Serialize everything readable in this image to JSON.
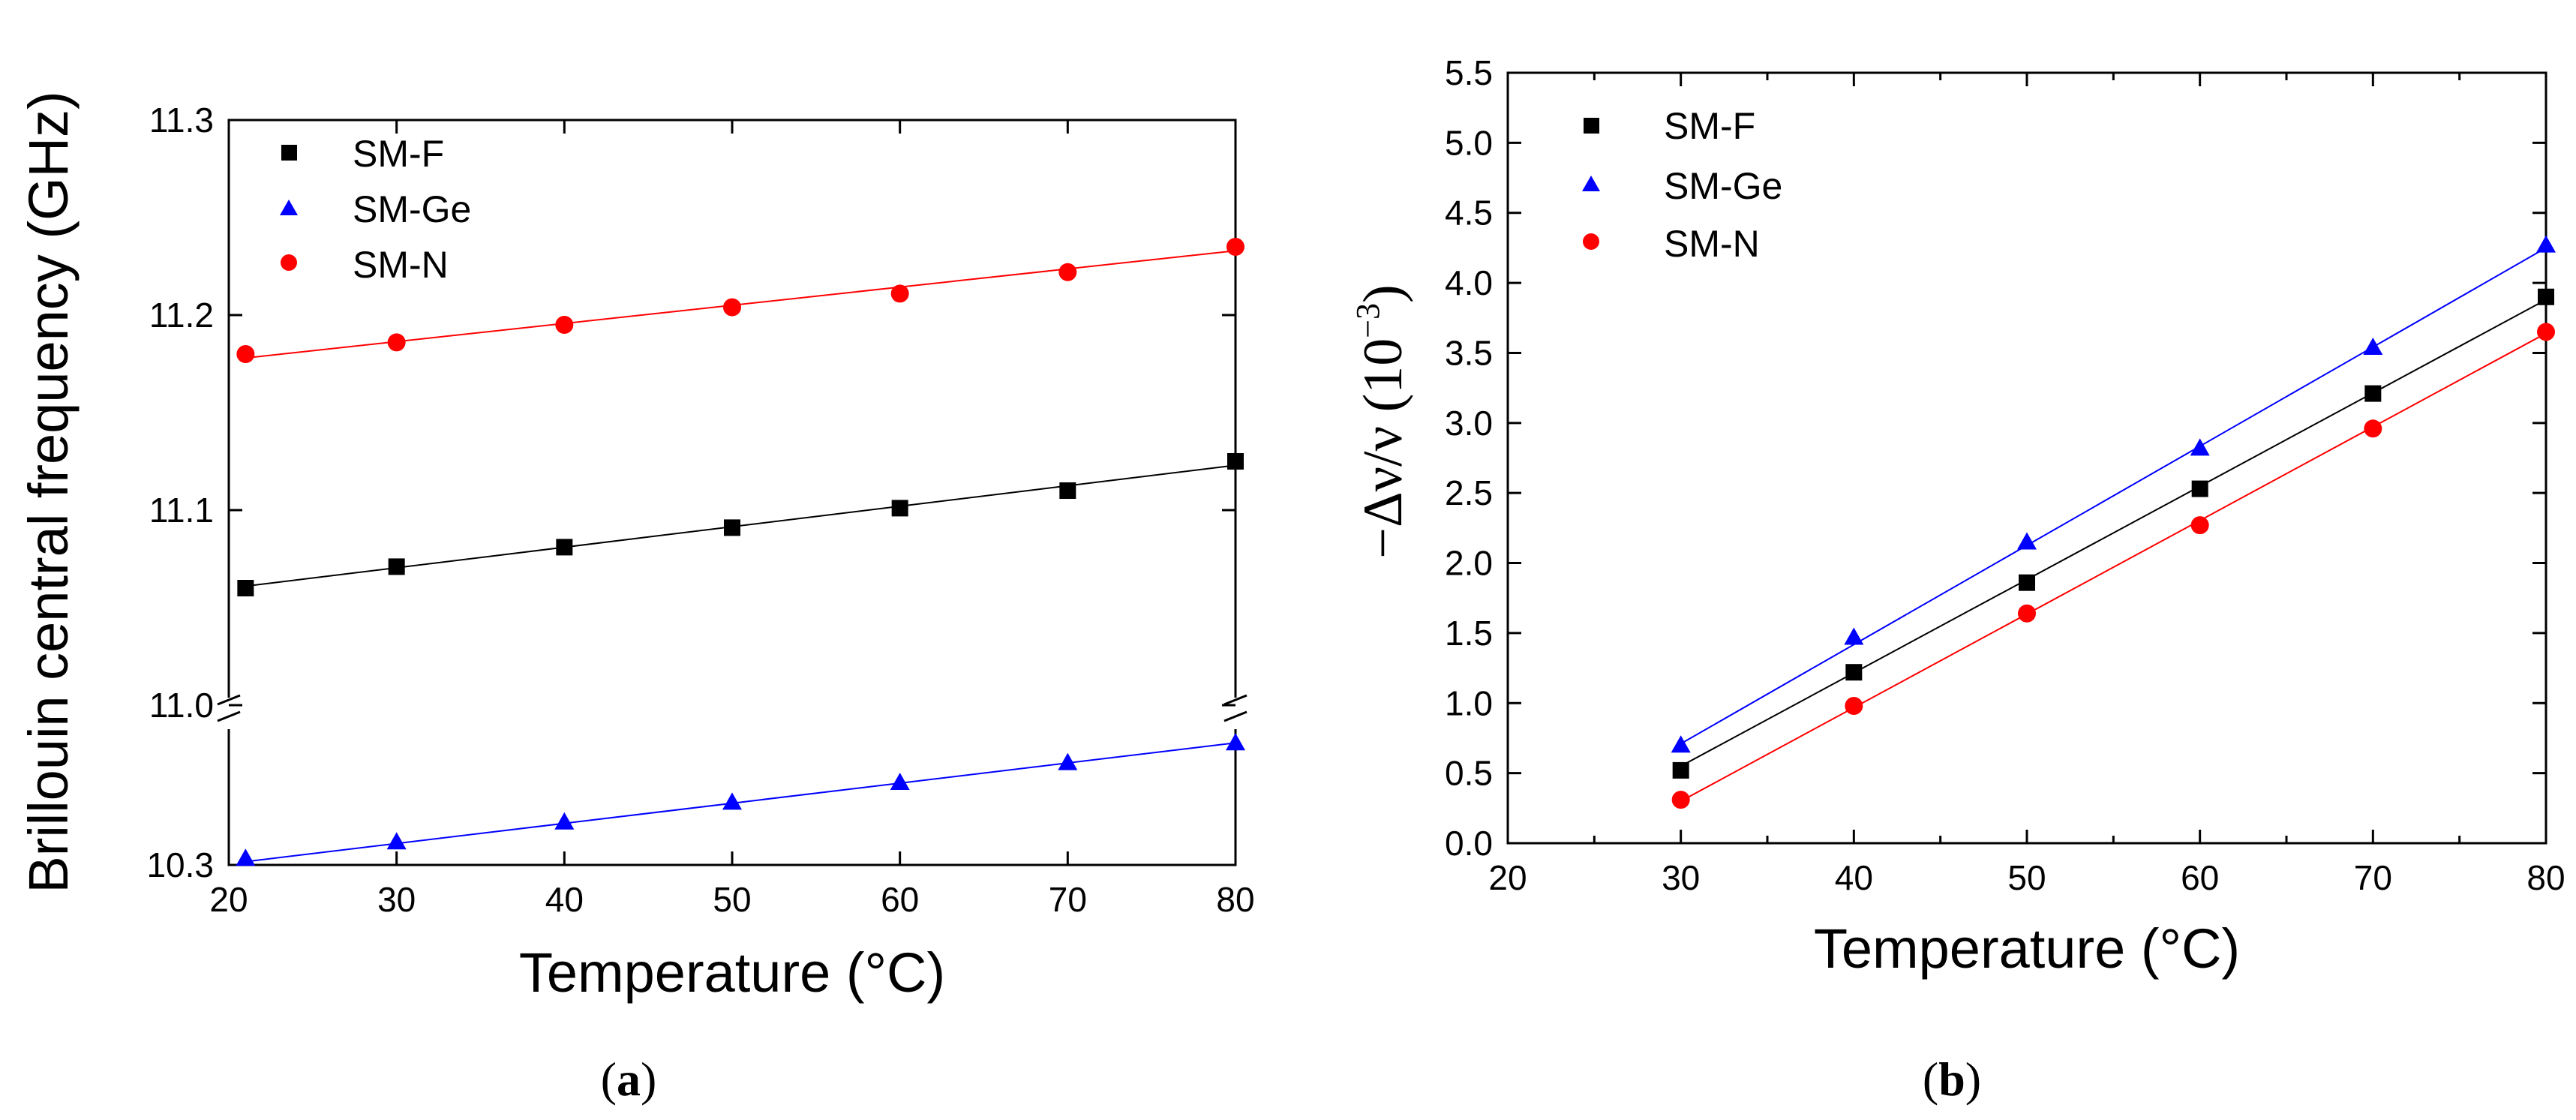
{
  "chart_data": [
    {
      "type": "scatter",
      "panel_label": "a",
      "xlabel": "Temperature (°C)",
      "ylabel": "Brillouin central frequency (GHz)",
      "xlim": [
        20,
        80
      ],
      "x_ticks": [
        "20",
        "30",
        "40",
        "50",
        "60",
        "70",
        "80"
      ],
      "upper_ylim": [
        11.0,
        11.3
      ],
      "upper_y_ticks": [
        "11.0",
        "11.1",
        "11.2",
        "11.3"
      ],
      "lower_ylim": [
        10.3,
        10.345
      ],
      "lower_y_ticks": [
        "10.3"
      ],
      "axis_break": true,
      "legend": [
        "SM-F",
        "SM-Ge",
        "SM-N"
      ],
      "series": [
        {
          "name": "SM-F",
          "color": "#000000",
          "marker": "square",
          "segment": "upper",
          "x": [
            21,
            30,
            40,
            50,
            60,
            70,
            80
          ],
          "y": [
            11.06,
            11.071,
            11.081,
            11.091,
            11.101,
            11.11,
            11.125
          ],
          "fit": [
            [
              21,
              11.061
            ],
            [
              80,
              11.123
            ]
          ]
        },
        {
          "name": "SM-Ge",
          "color": "#0000ff",
          "marker": "triangle",
          "segment": "lower",
          "x": [
            21,
            30,
            40,
            50,
            60,
            70,
            80
          ],
          "y": [
            10.302,
            10.307,
            10.313,
            10.319,
            10.325,
            10.331,
            10.337
          ],
          "fit": [
            [
              21,
              10.301
            ],
            [
              80,
              10.337
            ]
          ]
        },
        {
          "name": "SM-N",
          "color": "#ff0000",
          "marker": "circle",
          "segment": "upper",
          "x": [
            21,
            30,
            40,
            50,
            60,
            70,
            80
          ],
          "y": [
            11.18,
            11.186,
            11.195,
            11.204,
            11.211,
            11.222,
            11.235
          ],
          "fit": [
            [
              21,
              11.178
            ],
            [
              80,
              11.233
            ]
          ]
        }
      ]
    },
    {
      "type": "scatter",
      "panel_label": "b",
      "xlabel": "Temperature (°C)",
      "ylabel": "−Δν/ν (10⁻³)",
      "ylabel_parts": {
        "minus": "−",
        "main": "Δν/ν ",
        "open": "(10",
        "exp": "−3",
        "close": ")"
      },
      "xlim": [
        20,
        80
      ],
      "x_ticks": [
        "20",
        "30",
        "40",
        "50",
        "60",
        "70",
        "80"
      ],
      "ylim": [
        0.0,
        5.5
      ],
      "y_ticks": [
        "0.0",
        "0.5",
        "1.0",
        "1.5",
        "2.0",
        "2.5",
        "3.0",
        "3.5",
        "4.0",
        "4.5",
        "5.0",
        "5.5"
      ],
      "legend": [
        "SM-F",
        "SM-Ge",
        "SM-N"
      ],
      "series": [
        {
          "name": "SM-F",
          "color": "#000000",
          "marker": "square",
          "x": [
            30,
            40,
            50,
            60,
            70,
            80
          ],
          "y": [
            0.52,
            1.22,
            1.86,
            2.53,
            3.21,
            3.9
          ],
          "fit": [
            [
              30,
              0.55
            ],
            [
              80,
              3.88
            ]
          ]
        },
        {
          "name": "SM-Ge",
          "color": "#0000ff",
          "marker": "triangle",
          "x": [
            30,
            40,
            50,
            60,
            70,
            80
          ],
          "y": [
            0.7,
            1.47,
            2.15,
            2.82,
            3.54,
            4.27
          ],
          "fit": [
            [
              30,
              0.71
            ],
            [
              80,
              4.25
            ]
          ]
        },
        {
          "name": "SM-N",
          "color": "#ff0000",
          "marker": "circle",
          "x": [
            30,
            40,
            50,
            60,
            70,
            80
          ],
          "y": [
            0.31,
            0.98,
            1.64,
            2.27,
            2.96,
            3.65
          ],
          "fit": [
            [
              30,
              0.3
            ],
            [
              80,
              3.64
            ]
          ]
        }
      ]
    }
  ],
  "captions": {
    "a": {
      "open": "(",
      "letter": "a",
      "close": ")"
    },
    "b": {
      "open": "(",
      "letter": "b",
      "close": ")"
    }
  }
}
